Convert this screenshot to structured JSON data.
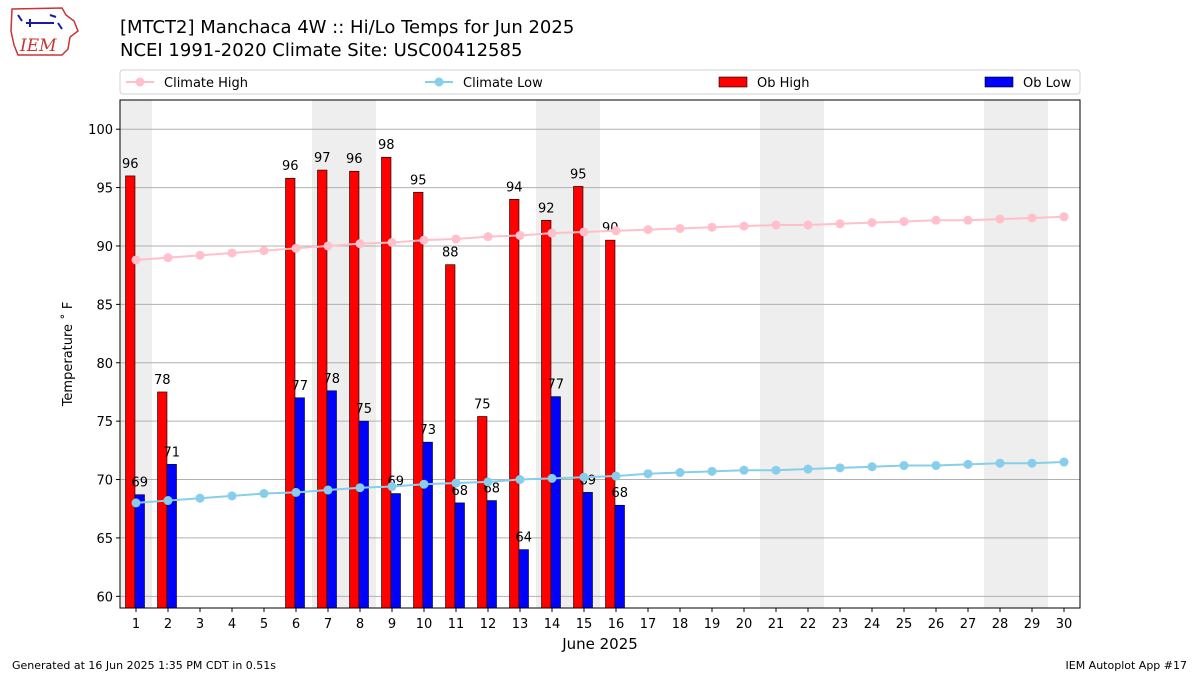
{
  "header": {
    "title_line1": "[MTCT2] Manchaca 4W :: Hi/Lo Temps for Jun 2025",
    "title_line2": "NCEI 1991-2020 Climate Site: USC00412585"
  },
  "logo": {
    "text": "IEM"
  },
  "footer": {
    "left": "Generated at 16 Jun 2025 1:35 PM CDT in 0.51s",
    "right": "IEM Autoplot App #17"
  },
  "colors": {
    "ob_high": "#ff0000",
    "ob_low": "#0000ff",
    "climate_high": "#ffc0cb",
    "climate_low": "#87ceeb",
    "weekend_shade": "#eeeeee",
    "grid": "#b0b0b0"
  },
  "chart_data": {
    "type": "bar",
    "xlabel": "June 2025",
    "ylabel": "Temperature ˚ F",
    "xlim": [
      0.5,
      30.5
    ],
    "ylim": [
      59,
      102.5
    ],
    "yticks": [
      60,
      65,
      70,
      75,
      80,
      85,
      90,
      95,
      100
    ],
    "grid": "y",
    "legend_placement": "top",
    "weekend_days": [
      1,
      7,
      8,
      14,
      15,
      21,
      22,
      28,
      29
    ],
    "days": [
      1,
      2,
      3,
      4,
      5,
      6,
      7,
      8,
      9,
      10,
      11,
      12,
      13,
      14,
      15,
      16,
      17,
      18,
      19,
      20,
      21,
      22,
      23,
      24,
      25,
      26,
      27,
      28,
      29,
      30
    ],
    "series": [
      {
        "name": "Climate High",
        "kind": "line",
        "values": [
          88.8,
          89.0,
          89.2,
          89.4,
          89.6,
          89.8,
          90.0,
          90.2,
          90.3,
          90.5,
          90.6,
          90.8,
          90.9,
          91.1,
          91.2,
          91.3,
          91.4,
          91.5,
          91.6,
          91.7,
          91.8,
          91.8,
          91.9,
          92.0,
          92.1,
          92.2,
          92.2,
          92.3,
          92.4,
          92.5
        ]
      },
      {
        "name": "Climate Low",
        "kind": "line",
        "values": [
          68.0,
          68.2,
          68.4,
          68.6,
          68.8,
          68.9,
          69.1,
          69.3,
          69.4,
          69.6,
          69.7,
          69.8,
          70.0,
          70.1,
          70.2,
          70.3,
          70.5,
          70.6,
          70.7,
          70.8,
          70.8,
          70.9,
          71.0,
          71.1,
          71.2,
          71.2,
          71.3,
          71.4,
          71.4,
          71.5
        ]
      },
      {
        "name": "Ob High",
        "kind": "bar",
        "values": [
          96,
          77.5,
          null,
          null,
          null,
          95.8,
          96.5,
          96.4,
          97.6,
          94.6,
          88.4,
          75.4,
          94,
          92.2,
          95.1,
          90.5,
          null,
          null,
          null,
          null,
          null,
          null,
          null,
          null,
          null,
          null,
          null,
          null,
          null,
          null
        ],
        "labels": [
          "96",
          "78",
          "",
          "",
          "",
          "96",
          "97",
          "96",
          "98",
          "95",
          "88",
          "75",
          "94",
          "92",
          "95",
          "90",
          "",
          "",
          "",
          "",
          "",
          "",
          "",
          "",
          "",
          "",
          "",
          "",
          "",
          ""
        ]
      },
      {
        "name": "Ob Low",
        "kind": "bar",
        "values": [
          68.7,
          71.3,
          null,
          null,
          null,
          77,
          77.6,
          75,
          68.8,
          73.2,
          68,
          68.2,
          64,
          77.1,
          68.9,
          67.8,
          null,
          null,
          null,
          null,
          null,
          null,
          null,
          null,
          null,
          null,
          null,
          null,
          null,
          null
        ],
        "labels": [
          "69",
          "71",
          "",
          "",
          "",
          "77",
          "78",
          "75",
          "69",
          "73",
          "68",
          "68",
          "64",
          "77",
          "69",
          "68",
          "",
          "",
          "",
          "",
          "",
          "",
          "",
          "",
          "",
          "",
          "",
          "",
          "",
          ""
        ]
      }
    ]
  }
}
